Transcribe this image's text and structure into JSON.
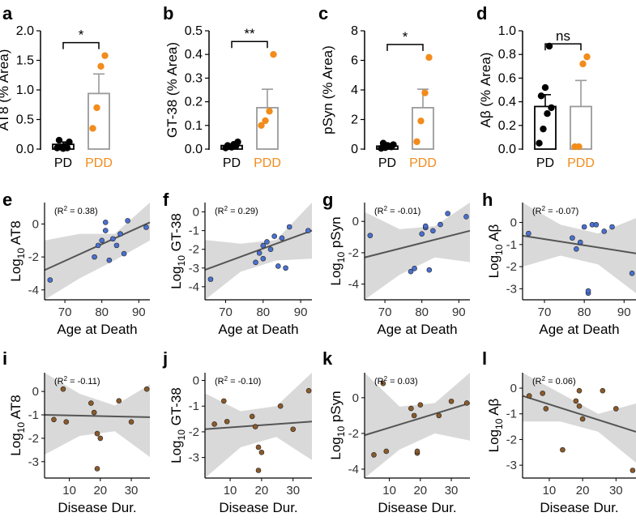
{
  "figure": {
    "colors": {
      "pd": "#000000",
      "pdd": "#f28c1c",
      "bar_pd": "#000000",
      "bar_pdd": "#9a9a9a",
      "age_point": "#4a70d0",
      "dur_point": "#8a5a2b",
      "ci_band": "#d9d9d9",
      "fit_line": "#555555"
    }
  },
  "chart_data": [
    {
      "id": "a",
      "type": "bar",
      "letter": "a",
      "ylabel": "AT8 (% Area)",
      "categories": [
        "PD",
        "PDD"
      ],
      "ylim": [
        0,
        2.0
      ],
      "yticks": [
        0.0,
        0.5,
        1.0,
        1.5,
        2.0
      ],
      "ytick_labels": [
        "0.0",
        "0.5",
        "1.0",
        "1.5",
        "2.0"
      ],
      "means": [
        0.08,
        0.94
      ],
      "sem": [
        0.04,
        0.33
      ],
      "points": [
        [
          0.02,
          0.03,
          0.05,
          0.12,
          0.15,
          0.01,
          0.02
        ],
        [
          0.35,
          0.7,
          1.4,
          1.58
        ]
      ],
      "significance": "*"
    },
    {
      "id": "b",
      "type": "bar",
      "letter": "b",
      "ylabel": "GT-38 (% Area)",
      "categories": [
        "PD",
        "PDD"
      ],
      "ylim": [
        0,
        0.5
      ],
      "yticks": [
        0.0,
        0.1,
        0.2,
        0.3,
        0.4,
        0.5
      ],
      "ytick_labels": [
        "0.0",
        "0.1",
        "0.2",
        "0.3",
        "0.4",
        "0.5"
      ],
      "means": [
        0.015,
        0.175
      ],
      "sem": [
        0.006,
        0.078
      ],
      "points": [
        [
          0.005,
          0.01,
          0.02,
          0.03,
          0.015,
          0.008,
          0.012
        ],
        [
          0.1,
          0.12,
          0.16,
          0.4
        ]
      ],
      "significance": "**"
    },
    {
      "id": "c",
      "type": "bar",
      "letter": "c",
      "ylabel": "pSyn (% Area)",
      "categories": [
        "PD",
        "PDD"
      ],
      "ylim": [
        0,
        8
      ],
      "yticks": [
        0,
        2,
        4,
        6,
        8
      ],
      "ytick_labels": [
        "0",
        "2",
        "4",
        "6",
        "8"
      ],
      "means": [
        0.2,
        2.8
      ],
      "sem": [
        0.1,
        1.25
      ],
      "points": [
        [
          0.05,
          0.1,
          0.2,
          0.3,
          0.4,
          0.25,
          0.15
        ],
        [
          0.5,
          1.9,
          3.8,
          6.2
        ]
      ],
      "significance": "*"
    },
    {
      "id": "d",
      "type": "bar",
      "letter": "d",
      "ylabel": "Aβ (% Area)",
      "categories": [
        "PD",
        "PDD"
      ],
      "ylim": [
        0,
        1.0
      ],
      "yticks": [
        0.0,
        0.2,
        0.4,
        0.6,
        0.8,
        1.0
      ],
      "ytick_labels": [
        "0.0",
        "0.2",
        "0.4",
        "0.6",
        "0.8",
        "1.0"
      ],
      "means": [
        0.36,
        0.36
      ],
      "sem": [
        0.1,
        0.22
      ],
      "points": [
        [
          0.05,
          0.17,
          0.3,
          0.35,
          0.45,
          0.52,
          0.87
        ],
        [
          0.02,
          0.02,
          0.72,
          0.78
        ]
      ],
      "significance": "ns"
    },
    {
      "id": "e",
      "type": "scatter",
      "letter": "e",
      "ylabel_prefix": "Log",
      "ylabel_sub": "10",
      "ylabel_suffix": " AT8",
      "xlabel": "Age at Death",
      "annotation_prefix": "(R",
      "annotation_sup": "2",
      "annotation_suffix": " = 0.38)",
      "xlim": [
        64.5,
        93
      ],
      "ylim": [
        -4.6,
        1.3
      ],
      "xticks": [
        70,
        80,
        90
      ],
      "xtick_labels": [
        "70",
        "80",
        "90"
      ],
      "yticks": [
        -4,
        -2,
        0
      ],
      "ytick_labels": [
        "-4",
        "-2",
        "0"
      ],
      "x": [
        66,
        78,
        79,
        80,
        81,
        81,
        82,
        83,
        84,
        85,
        86,
        87,
        92
      ],
      "y": [
        -3.4,
        -2.0,
        -1.3,
        -1.0,
        -0.4,
        0.1,
        -2.2,
        -0.9,
        -1.3,
        -0.6,
        -1.8,
        0.2,
        -0.2
      ],
      "fit": [
        -2.8,
        0.1
      ],
      "band_upper": [
        -1.0,
        -0.6,
        -0.6,
        1.3
      ],
      "band_lower": [
        -4.6,
        -3.3,
        -2.2,
        -1.0
      ]
    },
    {
      "id": "f",
      "type": "scatter",
      "letter": "f",
      "ylabel_prefix": "Log",
      "ylabel_sub": "10",
      "ylabel_suffix": " GT-38",
      "xlabel": "Age at Death",
      "annotation_prefix": "(R",
      "annotation_sup": "2",
      "annotation_suffix": " = 0.29)",
      "xlim": [
        64.5,
        93
      ],
      "ylim": [
        -4.7,
        0.5
      ],
      "xticks": [
        70,
        80,
        90
      ],
      "xtick_labels": [
        "70",
        "80",
        "90"
      ],
      "yticks": [
        -4,
        -3,
        -2,
        -1,
        0
      ],
      "ytick_labels": [
        "-4",
        "-3",
        "-2",
        "-1",
        "0"
      ],
      "x": [
        66,
        78,
        79,
        80,
        80,
        81,
        82,
        83,
        84,
        85,
        86,
        87,
        92
      ],
      "y": [
        -3.6,
        -2.7,
        -2.2,
        -2.5,
        -1.8,
        -1.6,
        -2.0,
        -1.3,
        -2.9,
        -1.4,
        -3.0,
        -0.8,
        -1.0
      ],
      "fit": [
        -3.1,
        -1.0
      ],
      "band_upper": [
        -1.5,
        -1.7,
        -1.5,
        0.5
      ],
      "band_lower": [
        -4.7,
        -3.2,
        -2.6,
        -2.5
      ]
    },
    {
      "id": "g",
      "type": "scatter",
      "letter": "g",
      "ylabel_prefix": "Log",
      "ylabel_sub": "10",
      "ylabel_suffix": " pSyn",
      "xlabel": "Age at Death",
      "annotation_prefix": "(R",
      "annotation_sup": "2",
      "annotation_suffix": " = -0.01)",
      "xlim": [
        64.5,
        93
      ],
      "ylim": [
        -5.0,
        1.2
      ],
      "xticks": [
        70,
        80,
        90
      ],
      "xtick_labels": [
        "70",
        "80",
        "90"
      ],
      "yticks": [
        -4,
        -2,
        0
      ],
      "ytick_labels": [
        "-4",
        "-2",
        "0"
      ],
      "x": [
        66,
        77,
        78,
        80,
        81,
        81,
        82,
        83,
        85,
        87,
        92
      ],
      "y": [
        -0.9,
        -3.2,
        -3.0,
        -0.8,
        -0.4,
        -0.3,
        -3.1,
        -0.6,
        -0.2,
        0.5,
        0.3
      ],
      "fit": [
        -2.3,
        -0.6
      ],
      "band_upper": [
        0.6,
        -0.5,
        -0.3,
        1.2
      ],
      "band_lower": [
        -5.0,
        -3.4,
        -2.3,
        -2.6
      ]
    },
    {
      "id": "h",
      "type": "scatter",
      "letter": "h",
      "ylabel_prefix": "Log",
      "ylabel_sub": "10",
      "ylabel_suffix": " Aβ",
      "xlabel": "Age at Death",
      "annotation_prefix": "(R",
      "annotation_sup": "2",
      "annotation_suffix": " = -0.07)",
      "xlim": [
        64.5,
        93
      ],
      "ylim": [
        -3.5,
        0.9
      ],
      "xticks": [
        70,
        80,
        90
      ],
      "xtick_labels": [
        "70",
        "80",
        "90"
      ],
      "yticks": [
        -3,
        -2,
        -1,
        0
      ],
      "ytick_labels": [
        "-3",
        "-2",
        "-1",
        "0"
      ],
      "x": [
        66,
        77,
        78,
        79,
        80,
        81,
        81,
        82,
        83,
        85,
        87,
        92
      ],
      "y": [
        -0.5,
        -0.7,
        -1.2,
        -0.9,
        -0.2,
        -3.2,
        -3.1,
        -0.1,
        -0.1,
        -0.4,
        -0.2,
        -2.3
      ],
      "fit": [
        -0.6,
        -1.4
      ],
      "band_upper": [
        0.9,
        -0.1,
        -0.5,
        0.2
      ],
      "band_lower": [
        -2.0,
        -1.5,
        -1.9,
        -3.2
      ]
    },
    {
      "id": "i",
      "type": "scatter",
      "letter": "i",
      "ylabel_prefix": "Log",
      "ylabel_sub": "10",
      "ylabel_suffix": " AT8",
      "xlabel": "Disease Dur.",
      "annotation_prefix": "(R",
      "annotation_sup": "2",
      "annotation_suffix": " = -0.11)",
      "xlim": [
        2,
        36
      ],
      "ylim": [
        -3.7,
        0.8
      ],
      "xticks": [
        10,
        20,
        30
      ],
      "xtick_labels": [
        "10",
        "20",
        "30"
      ],
      "yticks": [
        -3,
        -2,
        -1,
        0
      ],
      "ytick_labels": [
        "-3",
        "-2",
        "-1",
        "0"
      ],
      "x": [
        5,
        8,
        9,
        17,
        18,
        19,
        19,
        20,
        26,
        30,
        35
      ],
      "y": [
        -1.2,
        0.1,
        -1.3,
        -0.5,
        -0.9,
        -1.8,
        -3.3,
        -2.0,
        -0.4,
        -1.3,
        0.1
      ],
      "fit": [
        -1.0,
        -1.1
      ],
      "band_upper": [
        0.8,
        -0.1,
        -0.6,
        0.3
      ],
      "band_lower": [
        -2.7,
        -1.9,
        -1.7,
        -2.8
      ]
    },
    {
      "id": "j",
      "type": "scatter",
      "letter": "j",
      "ylabel_prefix": "Log",
      "ylabel_sub": "10",
      "ylabel_suffix": " GT-38",
      "xlabel": "Disease Dur.",
      "annotation_prefix": "(R",
      "annotation_sup": "2",
      "annotation_suffix": " = -0.10)",
      "xlim": [
        2,
        36
      ],
      "ylim": [
        -3.8,
        0.3
      ],
      "xticks": [
        10,
        20,
        30
      ],
      "xtick_labels": [
        "10",
        "20",
        "30"
      ],
      "yticks": [
        -3,
        -2,
        -1,
        0
      ],
      "ytick_labels": [
        "-3",
        "-2",
        "-1",
        "0"
      ],
      "x": [
        5,
        8,
        9,
        17,
        18,
        19,
        19,
        20,
        26,
        30,
        35
      ],
      "y": [
        -1.7,
        -0.8,
        -1.6,
        -1.4,
        -1.8,
        -2.6,
        -3.5,
        -2.8,
        -1.0,
        -1.9,
        -0.4
      ],
      "fit": [
        -1.9,
        -1.6
      ],
      "band_upper": [
        -0.5,
        -1.2,
        -1.0,
        0.3
      ],
      "band_lower": [
        -3.8,
        -2.6,
        -2.2,
        -3.1
      ]
    },
    {
      "id": "k",
      "type": "scatter",
      "letter": "k",
      "ylabel_prefix": "Log",
      "ylabel_sub": "10",
      "ylabel_suffix": " pSyn",
      "xlabel": "Disease Dur.",
      "annotation_prefix": "(R",
      "annotation_sup": "2",
      "annotation_suffix": " = 0.03)",
      "xlim": [
        2,
        36
      ],
      "ylim": [
        -4.5,
        1.4
      ],
      "xticks": [
        10,
        20,
        30
      ],
      "xtick_labels": [
        "10",
        "20",
        "30"
      ],
      "yticks": [
        -4,
        -2,
        0
      ],
      "ytick_labels": [
        "-4",
        "-2",
        "0"
      ],
      "x": [
        5,
        8,
        9,
        17,
        18,
        19,
        19,
        20,
        26,
        30,
        35
      ],
      "y": [
        -3.2,
        0.8,
        -3.0,
        -0.6,
        -1.0,
        -3.1,
        -3.0,
        -0.4,
        -1.0,
        -0.2,
        -0.3
      ],
      "fit": [
        -2.1,
        -0.3
      ],
      "band_upper": [
        1.4,
        -0.5,
        -0.3,
        1.4
      ],
      "band_lower": [
        -4.5,
        -2.9,
        -2.0,
        -2.4
      ]
    },
    {
      "id": "l",
      "type": "scatter",
      "letter": "l",
      "ylabel_prefix": "Log",
      "ylabel_sub": "10",
      "ylabel_suffix": " Aβ",
      "xlabel": "Disease Dur.",
      "annotation_prefix": "(R",
      "annotation_sup": "2",
      "annotation_suffix": " = 0.06)",
      "xlim": [
        2,
        36
      ],
      "ylim": [
        -3.5,
        0.6
      ],
      "xticks": [
        10,
        20,
        30
      ],
      "xtick_labels": [
        "10",
        "20",
        "30"
      ],
      "yticks": [
        -3,
        -2,
        -1,
        0
      ],
      "ytick_labels": [
        "-3",
        "-2",
        "-1",
        "0"
      ],
      "x": [
        4,
        8,
        9,
        14,
        18,
        19,
        19,
        20,
        26,
        30,
        35
      ],
      "y": [
        -0.3,
        -0.2,
        -0.8,
        -2.4,
        -0.5,
        -0.1,
        -0.7,
        -1.2,
        -0.1,
        -0.8,
        -3.2
      ],
      "fit": [
        -0.3,
        -1.7
      ],
      "band_upper": [
        0.6,
        -0.2,
        -1.0,
        -0.6
      ],
      "band_lower": [
        -1.3,
        -1.3,
        -1.7,
        -2.9
      ]
    }
  ]
}
